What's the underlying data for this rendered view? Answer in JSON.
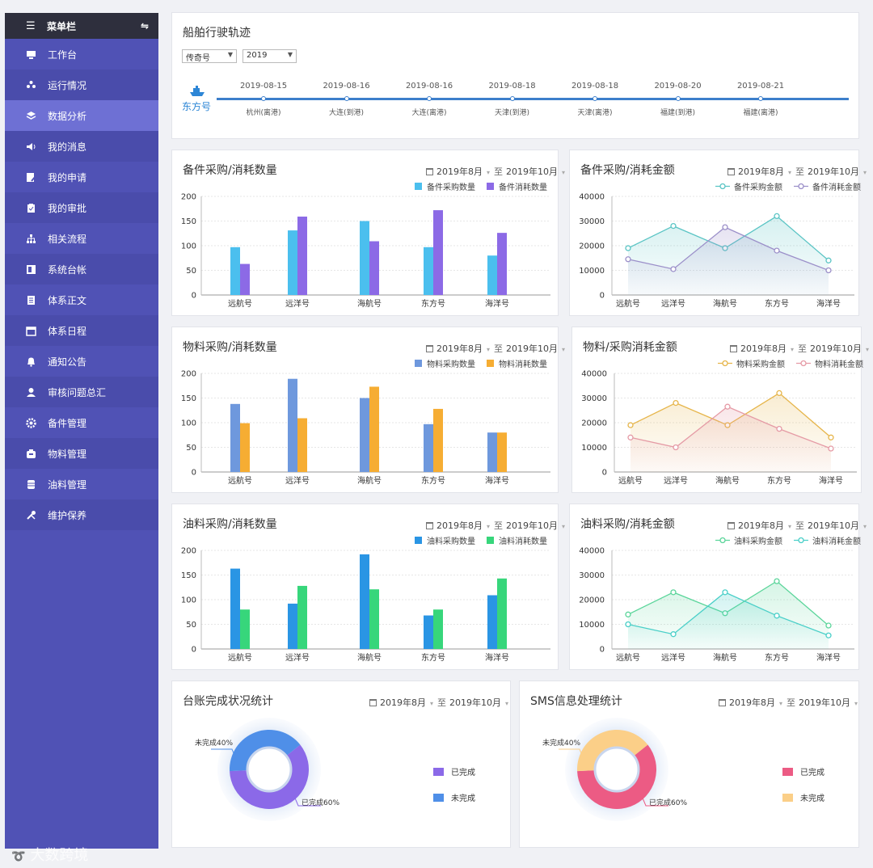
{
  "sidebar": {
    "title": "菜单栏",
    "items": [
      {
        "label": "工作台",
        "icon": "monitor-icon"
      },
      {
        "label": "运行情况",
        "icon": "flower-icon"
      },
      {
        "label": "数据分析",
        "icon": "layers-icon",
        "active": true
      },
      {
        "label": "我的消息",
        "icon": "speaker-icon"
      },
      {
        "label": "我的申请",
        "icon": "edit-doc-icon"
      },
      {
        "label": "我的审批",
        "icon": "clipboard-icon"
      },
      {
        "label": "相关流程",
        "icon": "hierarchy-icon"
      },
      {
        "label": "系统台帐",
        "icon": "ledger-icon"
      },
      {
        "label": "体系正文",
        "icon": "document-icon"
      },
      {
        "label": "体系日程",
        "icon": "calendar-icon"
      },
      {
        "label": "通知公告",
        "icon": "bell-icon"
      },
      {
        "label": "审核问题总汇",
        "icon": "user-icon"
      },
      {
        "label": "备件管理",
        "icon": "gear-icon"
      },
      {
        "label": "物料管理",
        "icon": "box-icon"
      },
      {
        "label": "油料管理",
        "icon": "barrel-icon"
      },
      {
        "label": "维护保养",
        "icon": "tools-icon"
      }
    ]
  },
  "voyage": {
    "title": "船舶行驶轨迹",
    "ship_select": "传奇号",
    "year_select": "2019",
    "ship_name": "东方号",
    "stops": [
      {
        "date": "2019-08-15",
        "port": "杭州(离港)"
      },
      {
        "date": "2019-08-16",
        "port": "大连(到港)"
      },
      {
        "date": "2019-08-16",
        "port": "大连(离港)"
      },
      {
        "date": "2019-08-18",
        "port": "天津(到港)"
      },
      {
        "date": "2019-08-18",
        "port": "天津(离港)"
      },
      {
        "date": "2019-08-20",
        "port": "福建(到港)"
      },
      {
        "date": "2019-08-21",
        "port": "福建(离港)"
      }
    ]
  },
  "range": {
    "from": "2019年8月",
    "to_label": "至",
    "to": "2019年10月"
  },
  "colors": {
    "blue": "#4bbfee",
    "purple": "#8c6ae6",
    "steel": "#6e98dd",
    "orange": "#f6ad33",
    "azure": "#2a95e4",
    "green": "#37d67b",
    "teal_line": "#59c4c4",
    "lilac_line": "#9b8fc9",
    "gold_line": "#e6b54a",
    "pink_line": "#e59aa5",
    "green_line": "#5ad59a",
    "cyan_line": "#49cfc8",
    "pie1_done": "#8b69e8",
    "pie1_todo": "#4f8fe8",
    "pie2_done": "#ec5b84",
    "pie2_todo": "#fbcf88"
  },
  "chart_data": [
    {
      "id": "c1",
      "type": "bar",
      "title": "备件采购/消耗数量",
      "categories": [
        "远航号",
        "远洋号",
        "海航号",
        "东方号",
        "海洋号"
      ],
      "series": [
        {
          "name": "备件采购数量",
          "values": [
            97,
            131,
            150,
            97,
            80
          ]
        },
        {
          "name": "备件消耗数量",
          "values": [
            63,
            159,
            109,
            172,
            126
          ]
        }
      ],
      "ylim": [
        0,
        200
      ],
      "yticks": [
        0,
        50,
        100,
        150,
        200
      ]
    },
    {
      "id": "c2",
      "type": "line",
      "title": "备件采购/消耗金额",
      "categories": [
        "远航号",
        "远洋号",
        "海航号",
        "东方号",
        "海洋号"
      ],
      "series": [
        {
          "name": "备件采购金额",
          "values": [
            19000,
            28000,
            19000,
            32000,
            14000
          ]
        },
        {
          "name": "备件消耗金额",
          "values": [
            14500,
            10500,
            27500,
            18000,
            10000
          ]
        }
      ],
      "ylim": [
        0,
        40000
      ],
      "yticks": [
        0,
        10000,
        20000,
        30000,
        40000
      ]
    },
    {
      "id": "c3",
      "type": "bar",
      "title": "物料采购/消耗数量",
      "categories": [
        "远航号",
        "远洋号",
        "海航号",
        "东方号",
        "海洋号"
      ],
      "series": [
        {
          "name": "物料采购数量",
          "values": [
            138,
            189,
            150,
            97,
            80
          ]
        },
        {
          "name": "物料消耗数量",
          "values": [
            99,
            109,
            173,
            128,
            80
          ]
        }
      ],
      "ylim": [
        0,
        200
      ],
      "yticks": [
        0,
        50,
        100,
        150,
        200
      ]
    },
    {
      "id": "c4",
      "type": "line",
      "title": "物料/采购消耗金额",
      "categories": [
        "远航号",
        "远洋号",
        "海航号",
        "东方号",
        "海洋号"
      ],
      "series": [
        {
          "name": "物料采购金额",
          "values": [
            19000,
            28000,
            19000,
            32000,
            14000
          ]
        },
        {
          "name": "物料消耗金额",
          "values": [
            14000,
            10000,
            26500,
            17500,
            9500
          ]
        }
      ],
      "ylim": [
        0,
        40000
      ],
      "yticks": [
        0,
        10000,
        20000,
        30000,
        40000
      ]
    },
    {
      "id": "c5",
      "type": "bar",
      "title": "油料采购/消耗数量",
      "categories": [
        "远航号",
        "远洋号",
        "海航号",
        "东方号",
        "海洋号"
      ],
      "series": [
        {
          "name": "油料采购数量",
          "values": [
            163,
            92,
            192,
            68,
            109
          ]
        },
        {
          "name": "油料消耗数量",
          "values": [
            80,
            128,
            121,
            80,
            143
          ]
        }
      ],
      "ylim": [
        0,
        200
      ],
      "yticks": [
        0,
        50,
        100,
        150,
        200
      ]
    },
    {
      "id": "c6",
      "type": "line",
      "title": "油料采购/消耗金额",
      "categories": [
        "远航号",
        "远洋号",
        "海航号",
        "东方号",
        "海洋号"
      ],
      "series": [
        {
          "name": "油料采购金额",
          "values": [
            14000,
            23000,
            14500,
            27500,
            9500
          ]
        },
        {
          "name": "油料消耗金额",
          "values": [
            10000,
            6000,
            23000,
            13500,
            5500
          ]
        }
      ],
      "ylim": [
        0,
        40000
      ],
      "yticks": [
        0,
        10000,
        20000,
        30000,
        40000
      ]
    },
    {
      "id": "c7",
      "type": "pie",
      "title": "台账完成状况统计",
      "slices": [
        {
          "name": "已完成",
          "value": 60,
          "label": "已完成60%"
        },
        {
          "name": "未完成",
          "value": 40,
          "label": "未完成40%"
        }
      ]
    },
    {
      "id": "c8",
      "type": "pie",
      "title": "SMS信息处理统计",
      "slices": [
        {
          "name": "已完成",
          "value": 60,
          "label": "已完成60%"
        },
        {
          "name": "未完成",
          "value": 40,
          "label": "未完成40%"
        }
      ]
    }
  ],
  "watermark": "大数跨境"
}
